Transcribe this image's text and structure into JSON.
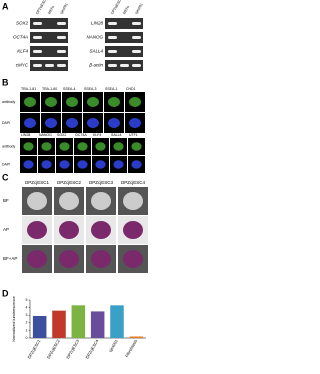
{
  "panels": {
    "a": {
      "label": "A",
      "lanes": [
        "DPZcjESC",
        "MEFs",
        "cjes001"
      ],
      "left_genes": [
        "SOX2",
        "OCT4A",
        "KLF4",
        "cMYC"
      ],
      "right_genes": [
        "LIN28",
        "NANOG",
        "SALL4",
        "β-actin"
      ]
    },
    "b": {
      "label": "B",
      "row_labels": [
        "antibody",
        "DAPI"
      ],
      "markers_1": [
        "TRA-1-81",
        "TRA-1-60",
        "SSEA-4",
        "SSEA-3",
        "SSEA-1",
        "CHD1"
      ],
      "markers_2": [
        "LIN28",
        "NANOG",
        "SOX2",
        "OCT4A",
        "KLF4",
        "SALL4",
        "UTF1"
      ]
    },
    "c": {
      "label": "C",
      "lines": [
        "DPZcjESC1",
        "DPZcjESC2",
        "DPZcjESC3",
        "DPZcjESC4"
      ],
      "rows": [
        "BF",
        "AP",
        "BF+AP"
      ]
    },
    "d": {
      "label": "D"
    }
  },
  "chart_data": {
    "type": "bar",
    "y_label": "Normalized luminescence",
    "categories": [
      "DPZcjESC1",
      "DPZcjESC2",
      "DPZcjESC3",
      "DPZcjESC4",
      "cjes001",
      "Fibroblasts"
    ],
    "values": [
      2.9,
      3.6,
      4.3,
      3.5,
      4.3,
      0.2
    ],
    "colors": [
      "#3b4f9e",
      "#c0392b",
      "#7cb342",
      "#6a4c9c",
      "#3aa0c8",
      "#e67e22"
    ],
    "ylim": [
      0,
      5
    ],
    "yticks": [
      0,
      1,
      2,
      3,
      4,
      5
    ]
  }
}
